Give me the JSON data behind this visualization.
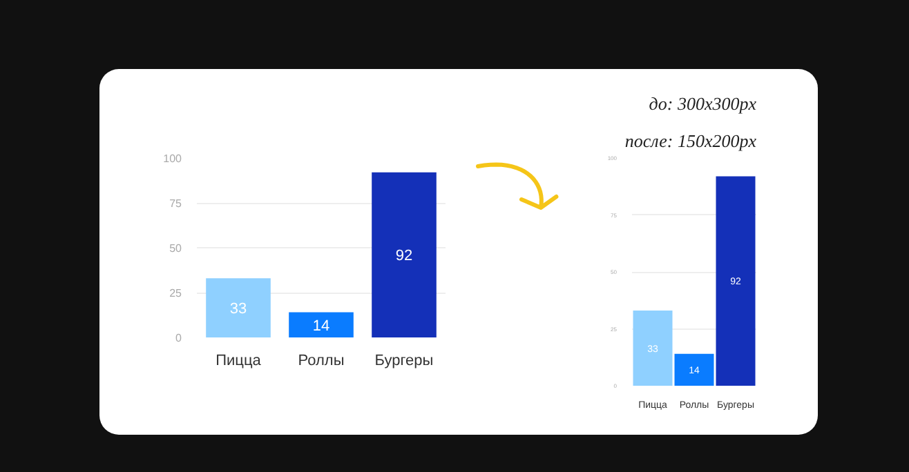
{
  "chart_data": [
    {
      "type": "bar",
      "categories": [
        "Пицца",
        "Роллы",
        "Бургеры"
      ],
      "values": [
        33,
        14,
        92
      ],
      "colors": [
        "#8fd0ff",
        "#0a7cff",
        "#1430b8"
      ],
      "ylim": [
        0,
        100
      ],
      "yticks": [
        0,
        25,
        50,
        75,
        100
      ],
      "grid": "y",
      "data_labels": true
    },
    {
      "type": "bar",
      "categories": [
        "Пицца",
        "Роллы",
        "Бургеры"
      ],
      "values": [
        33,
        14,
        92
      ],
      "colors": [
        "#8fd0ff",
        "#0a7cff",
        "#1430b8"
      ],
      "ylim": [
        0,
        100
      ],
      "yticks": [
        0,
        25,
        50,
        75,
        100
      ],
      "grid": "y",
      "data_labels": true,
      "annotations": [
        "до: 300x300px",
        "после: 150x200px"
      ]
    }
  ]
}
